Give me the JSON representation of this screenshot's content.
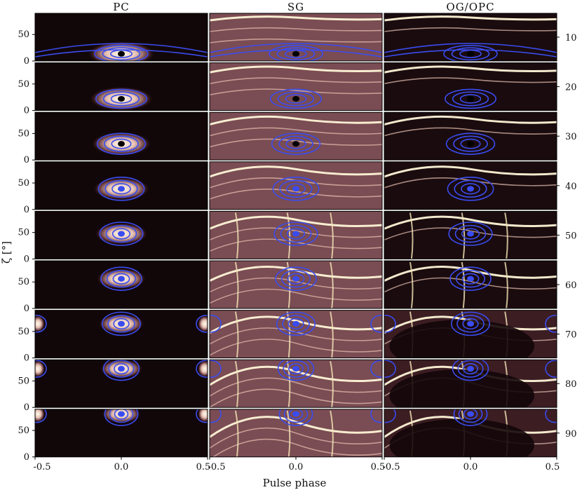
{
  "chart_data": {
    "type": "heatmap",
    "columns": [
      "PC",
      "SG",
      "OG/OPC"
    ],
    "rows": [
      10,
      20,
      30,
      40,
      50,
      60,
      70,
      80,
      90
    ],
    "xlabel": "Pulse phase",
    "ylabel": "ζ [°]",
    "x_ticks": [
      "-0.5",
      "0.0",
      "0.5"
    ],
    "y_ticks": [
      "0",
      "50"
    ],
    "xlim": [
      -0.5,
      0.5
    ],
    "ylim": [
      0,
      90
    ],
    "colormap": [
      "#120708",
      "#5a2e35",
      "#a56f73",
      "#e6c0b2",
      "#fffff0"
    ],
    "contour_color": "#3a4cf0"
  }
}
